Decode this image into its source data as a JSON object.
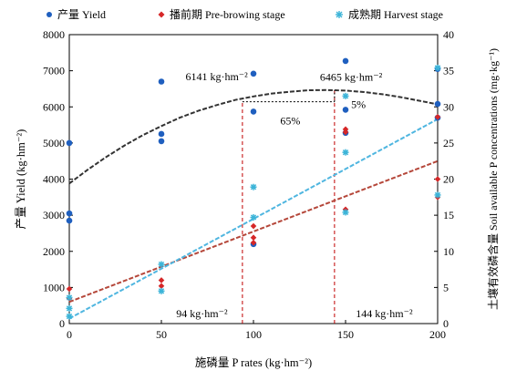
{
  "chart_data": {
    "type": "scatter",
    "legend": {
      "placement": "top",
      "entries": [
        {
          "label": "产量 Yield",
          "color": "#1f5fbf",
          "marker": "circle"
        },
        {
          "label": "播前期 Pre-browing stage",
          "color": "#d62728",
          "marker": "diamond"
        },
        {
          "label": "成熟期 Harvest  stage",
          "color": "#3cb4d8",
          "marker": "star"
        }
      ]
    },
    "xlabel": "施磷量 P rates (kg·hm⁻²)",
    "ylabel_left": "产量 Yield (kg·hm⁻²)",
    "ylabel_right": "土壤有效磷含量 Soil available P concentrations (mg·kg⁻¹)",
    "xlim": [
      0,
      200
    ],
    "ylim_left": [
      0,
      8000
    ],
    "ylim_right": [
      0,
      40
    ],
    "x_ticks": [
      "0",
      "50",
      "100",
      "150",
      "200"
    ],
    "y_left_ticks": [
      "0",
      "1000",
      "2000",
      "3000",
      "4000",
      "5000",
      "6000",
      "7000",
      "8000"
    ],
    "y_right_ticks": [
      "0",
      "5",
      "10",
      "15",
      "20",
      "25",
      "30",
      "35",
      "40"
    ],
    "grid": false,
    "series": [
      {
        "name": "产量 Yield",
        "axis": "left",
        "color": "#1f5fbf",
        "marker": "circle",
        "points": [
          [
            0,
            5000
          ],
          [
            0,
            3050
          ],
          [
            0,
            2850
          ],
          [
            50,
            6700
          ],
          [
            50,
            5250
          ],
          [
            50,
            5050
          ],
          [
            100,
            6920
          ],
          [
            100,
            5870
          ],
          [
            100,
            2200
          ],
          [
            150,
            7270
          ],
          [
            150,
            5920
          ],
          [
            150,
            5280
          ],
          [
            200,
            7050
          ],
          [
            200,
            6080
          ],
          [
            200,
            5700
          ]
        ]
      },
      {
        "name": "播前期 Pre-browing stage",
        "axis": "right",
        "color": "#d62728",
        "marker": "diamond",
        "points": [
          [
            0,
            4.8
          ],
          [
            0,
            3.5
          ],
          [
            50,
            6.0
          ],
          [
            50,
            5.2
          ],
          [
            100,
            13.5
          ],
          [
            100,
            11.9
          ],
          [
            100,
            11.2
          ],
          [
            150,
            26.9
          ],
          [
            150,
            26.5
          ],
          [
            150,
            15.8
          ],
          [
            200,
            28.6
          ],
          [
            200,
            20.0
          ],
          [
            200,
            17.5
          ]
        ]
      },
      {
        "name": "成熟期 Harvest  stage",
        "axis": "right",
        "color": "#3cb4d8",
        "marker": "star",
        "points": [
          [
            0,
            3.6
          ],
          [
            0,
            2.1
          ],
          [
            0,
            1.0
          ],
          [
            50,
            8.2
          ],
          [
            50,
            4.5
          ],
          [
            100,
            18.9
          ],
          [
            100,
            14.7
          ],
          [
            150,
            31.5
          ],
          [
            150,
            23.7
          ],
          [
            150,
            15.4
          ],
          [
            200,
            35.4
          ],
          [
            200,
            17.8
          ]
        ]
      }
    ],
    "fit_curves": [
      {
        "name": "yield-quadratic-fit",
        "axis": "left",
        "color": "#333333",
        "style": "dashed",
        "x": [
          0,
          10,
          20,
          30,
          40,
          50,
          60,
          70,
          80,
          90,
          100,
          110,
          120,
          130,
          140,
          150,
          160,
          170,
          180,
          190,
          200
        ],
        "y": [
          3880,
          4260,
          4610,
          4930,
          5220,
          5470,
          5700,
          5890,
          6050,
          6190,
          6290,
          6370,
          6420,
          6460,
          6465,
          6450,
          6410,
          6350,
          6270,
          6170,
          6070
        ]
      },
      {
        "name": "pre-browing-linear-fit",
        "axis": "right",
        "color": "#b5473a",
        "style": "dashed",
        "x": [
          0,
          200
        ],
        "y": [
          3.0,
          22.5
        ]
      },
      {
        "name": "harvest-linear-fit",
        "axis": "right",
        "color": "#4fb6e0",
        "style": "dashed",
        "x": [
          0,
          200
        ],
        "y": [
          0.7,
          28.3
        ]
      }
    ],
    "reference_lines": [
      {
        "name": "optimum-94-vertical",
        "color": "#c00000",
        "style": "dashed",
        "x": 94,
        "y_left_range": [
          0,
          6141
        ]
      },
      {
        "name": "optimum-144-vertical",
        "color": "#c00000",
        "style": "dashed",
        "x": 144,
        "y_left_range": [
          0,
          6465
        ]
      },
      {
        "name": "optimum-horizontal",
        "color": "#000000",
        "style": "dotted",
        "x_range": [
          94,
          144
        ],
        "y_left": 6141
      },
      {
        "name": "optimum-small-vertical",
        "color": "#000000",
        "style": "dotted",
        "x": 144,
        "y_left_range": [
          6141,
          6465
        ]
      }
    ],
    "annotations": [
      {
        "name": "max-yield-6141",
        "text": "6141 kg·hm⁻²",
        "x": 80,
        "y_left": 6740
      },
      {
        "name": "max-yield-6465",
        "text": "6465 kg·hm⁻²",
        "x": 153,
        "y_left": 6720
      },
      {
        "name": "pct-65",
        "text": "65%",
        "x": 120,
        "y_left": 5520
      },
      {
        "name": "pct-5",
        "text": "5%",
        "x": 157,
        "y_left": 5970
      },
      {
        "name": "rate-94",
        "text": "94 kg·hm⁻²",
        "x": 72,
        "y_left": 180
      },
      {
        "name": "rate-144",
        "text": "144 kg·hm⁻²",
        "x": 171,
        "y_left": 180
      }
    ]
  }
}
